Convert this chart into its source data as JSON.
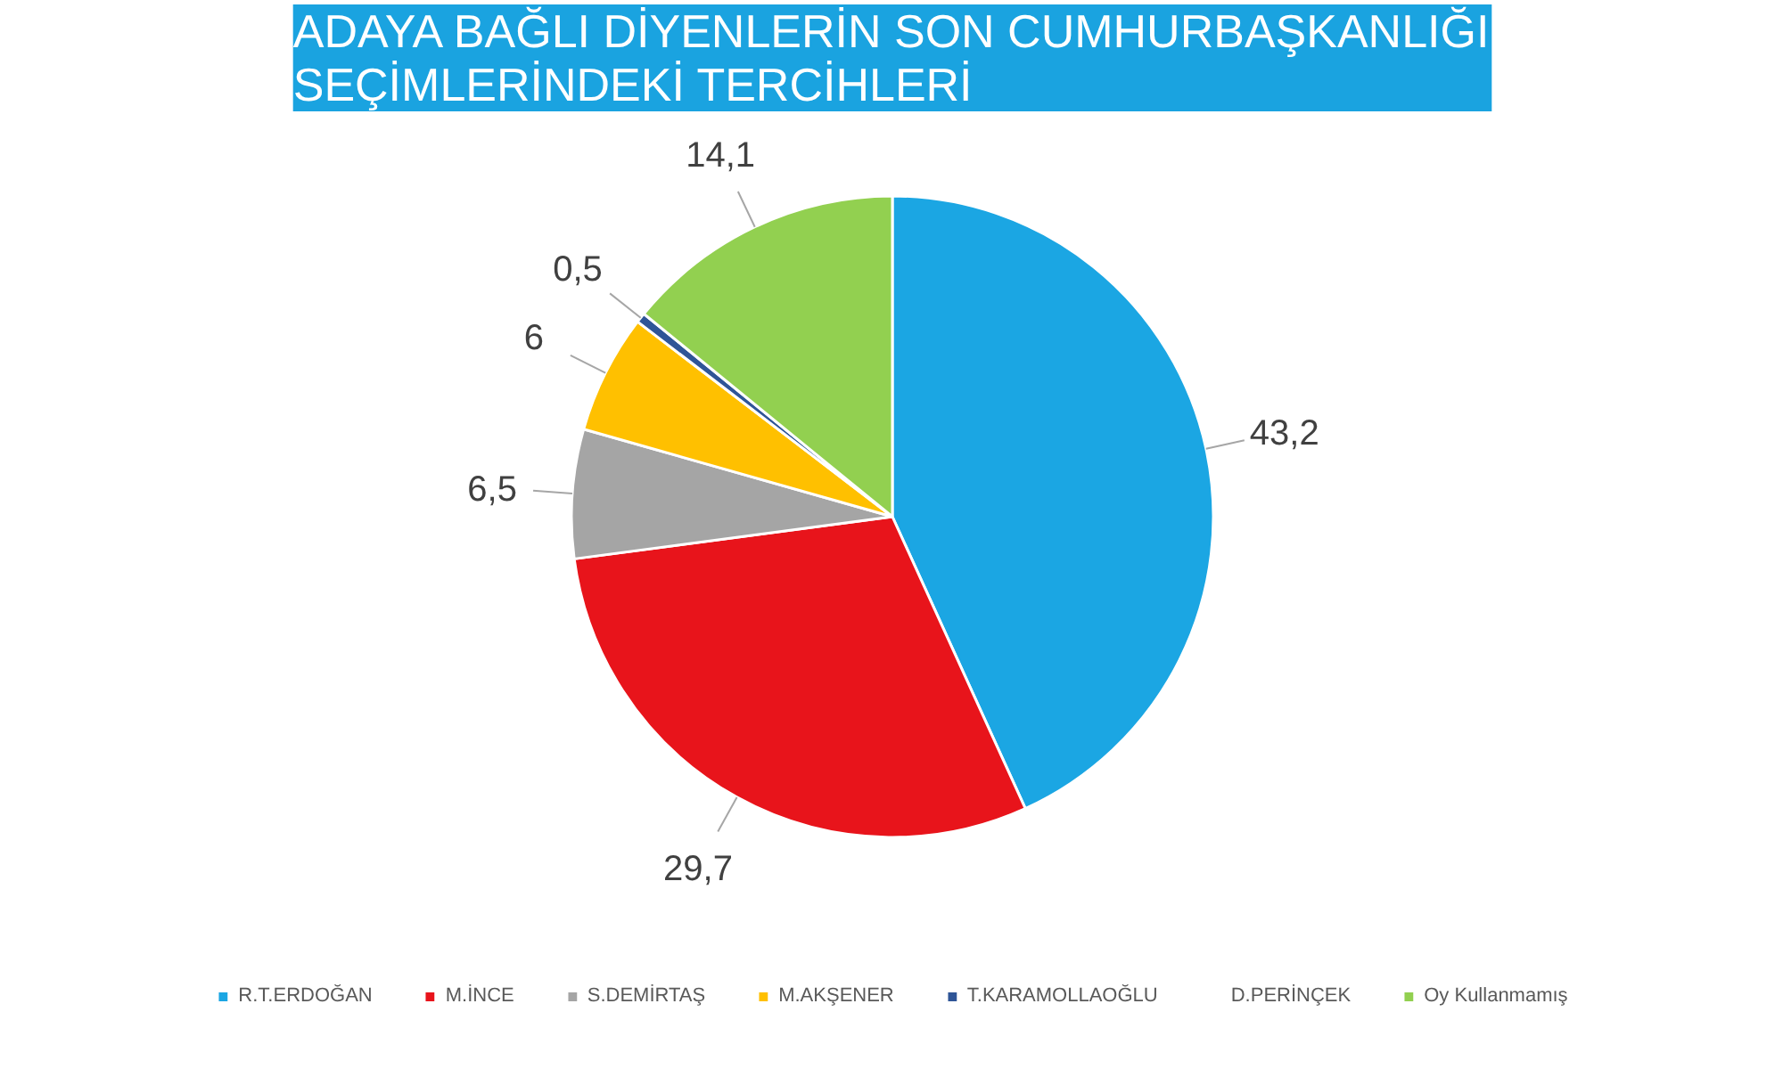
{
  "chart_data": {
    "type": "pie",
    "title": "ADAYA BAĞLI DİYENLERİN SON CUMHURBAŞKANLIĞI\nSEÇİMLERİNDEKİ TERCİHLERİ",
    "categories": [
      "R.T.ERDOĞAN",
      "M.İNCE",
      "S.DEMİRTAŞ",
      "M.AKŞENER",
      "T.KARAMOLLAOĞLU",
      "D.PERİNÇEK",
      "Oy Kullanmamış"
    ],
    "values": [
      43.2,
      29.7,
      6.5,
      6,
      0.5,
      0,
      14.1
    ],
    "value_labels": [
      "43,2",
      "29,7",
      "6,5",
      "6",
      "0,5",
      null,
      "14,1"
    ],
    "colors": [
      "#1ba6e3",
      "#e8141b",
      "#a5a5a5",
      "#ffc000",
      "#2f5597",
      "#548235",
      "#92d050"
    ],
    "legend": "bottom"
  }
}
